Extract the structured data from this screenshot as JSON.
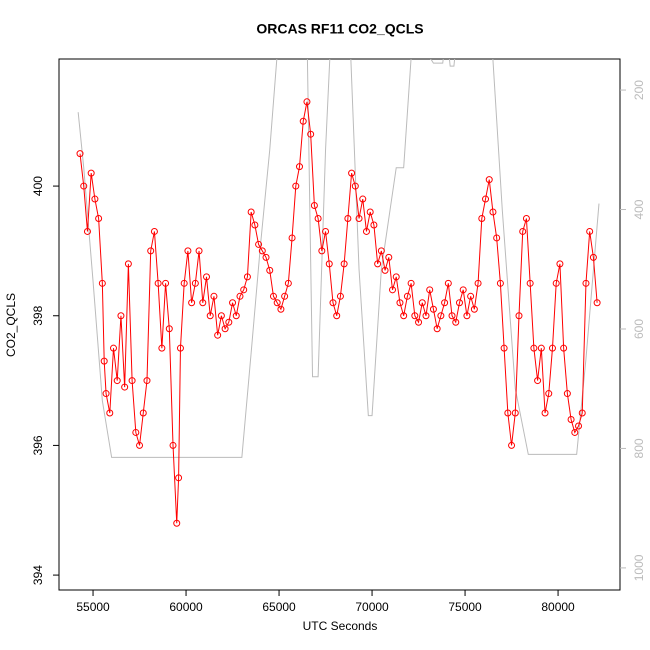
{
  "chart_data": {
    "type": "line",
    "title": "ORCAS RF11 CO2_QCLS",
    "x_label": "UTC Seconds",
    "y_label": "CO2_QCLS",
    "xlim": [
      53170,
      83330
    ],
    "xticks": [
      55000,
      60000,
      65000,
      70000,
      75000,
      80000
    ],
    "ylim": [
      393.77,
      401.96
    ],
    "yticks": [
      394,
      396,
      398,
      400
    ],
    "y2lim": [
      1037,
      148
    ],
    "y2ticks": [
      200,
      400,
      600,
      800,
      1000
    ],
    "y2_color": "#bbbbbb",
    "series": [
      {
        "color": "#bbbbbb",
        "axis": "y2",
        "markers": false,
        "x": [
          54200,
          54500,
          55000,
          55500,
          56000,
          57000,
          60000,
          63000,
          63500,
          64000,
          64500,
          65000,
          66500,
          66800,
          67100,
          67500,
          67800,
          68800,
          69300,
          69800,
          70000,
          70500,
          71300,
          71700,
          72200,
          73300,
          73800,
          74000,
          74200,
          74400,
          74600,
          76400,
          77000,
          77700,
          78400,
          81000,
          81500,
          82200
        ],
        "values": [
          237,
          330,
          520,
          720,
          815,
          815,
          815,
          815,
          640,
          460,
          300,
          100,
          100,
          680,
          680,
          300,
          100,
          100,
          500,
          745,
          745,
          500,
          330,
          330,
          100,
          155,
          155,
          100,
          160,
          160,
          100,
          100,
          400,
          700,
          810,
          810,
          650,
          390
        ]
      },
      {
        "color": "#ff0000",
        "markers": true,
        "x": [
          54300,
          54500,
          54700,
          54900,
          55100,
          55300,
          55500,
          55600,
          55700,
          55900,
          56100,
          56300,
          56500,
          56700,
          56900,
          57100,
          57300,
          57500,
          57700,
          57900,
          58100,
          58300,
          58500,
          58700,
          58900,
          59100,
          59300,
          59500,
          59600,
          59700,
          59900,
          60100,
          60300,
          60500,
          60700,
          60900,
          61100,
          61300,
          61500,
          61700,
          61900,
          62100,
          62300,
          62500,
          62700,
          62900,
          63100,
          63300,
          63500,
          63700,
          63900,
          64100,
          64300,
          64500,
          64700,
          64900,
          65100,
          65300,
          65500,
          65700,
          65900,
          66100,
          66300,
          66500,
          66700,
          66900,
          67100,
          67300,
          67500,
          67700,
          67900,
          68100,
          68300,
          68500,
          68700,
          68900,
          69100,
          69300,
          69500,
          69700,
          69900,
          70100,
          70300,
          70500,
          70700,
          70900,
          71100,
          71300,
          71500,
          71700,
          71900,
          72100,
          72300,
          72500,
          72700,
          72900,
          73100,
          73300,
          73500,
          73700,
          73900,
          74100,
          74300,
          74500,
          74700,
          74900,
          75100,
          75300,
          75500,
          75700,
          75900,
          76100,
          76300,
          76500,
          76700,
          76900,
          77100,
          77300,
          77500,
          77700,
          77900,
          78100,
          78300,
          78500,
          78700,
          78900,
          79100,
          79300,
          79500,
          79700,
          79900,
          80100,
          80300,
          80500,
          80700,
          80900,
          81100,
          81300,
          81500,
          81700,
          81900,
          82100
        ],
        "values": [
          400.5,
          400.0,
          399.3,
          400.2,
          399.8,
          399.5,
          398.5,
          397.3,
          396.8,
          396.5,
          397.5,
          397.0,
          398.0,
          396.9,
          398.8,
          397.0,
          396.2,
          396.0,
          396.5,
          397.0,
          399.0,
          399.3,
          398.5,
          397.5,
          398.5,
          397.8,
          396.0,
          394.8,
          395.5,
          397.5,
          398.5,
          399.0,
          398.2,
          398.5,
          399.0,
          398.2,
          398.6,
          398.0,
          398.3,
          397.7,
          398.0,
          397.8,
          397.9,
          398.2,
          398.0,
          398.3,
          398.4,
          398.6,
          399.6,
          399.4,
          399.1,
          399.0,
          398.9,
          398.7,
          398.3,
          398.2,
          398.1,
          398.3,
          398.5,
          399.2,
          400.0,
          400.3,
          401.0,
          401.3,
          400.8,
          399.7,
          399.5,
          399.0,
          399.3,
          398.8,
          398.2,
          398.0,
          398.3,
          398.8,
          399.5,
          400.2,
          400.0,
          399.5,
          399.8,
          399.3,
          399.6,
          399.4,
          398.8,
          399.0,
          398.7,
          398.9,
          398.4,
          398.6,
          398.2,
          398.0,
          398.3,
          398.5,
          398.0,
          397.9,
          398.2,
          398.0,
          398.4,
          398.1,
          397.8,
          398.0,
          398.2,
          398.5,
          398.0,
          397.9,
          398.2,
          398.4,
          398.0,
          398.3,
          398.1,
          398.5,
          399.5,
          399.8,
          400.1,
          399.6,
          399.2,
          398.5,
          397.5,
          396.5,
          396.0,
          396.5,
          398.0,
          399.3,
          399.5,
          398.5,
          397.5,
          397.0,
          397.5,
          396.5,
          396.8,
          397.5,
          398.5,
          398.8,
          397.5,
          396.8,
          396.4,
          396.2,
          396.3,
          396.5,
          398.5,
          399.3,
          398.9,
          398.2
        ]
      }
    ]
  }
}
